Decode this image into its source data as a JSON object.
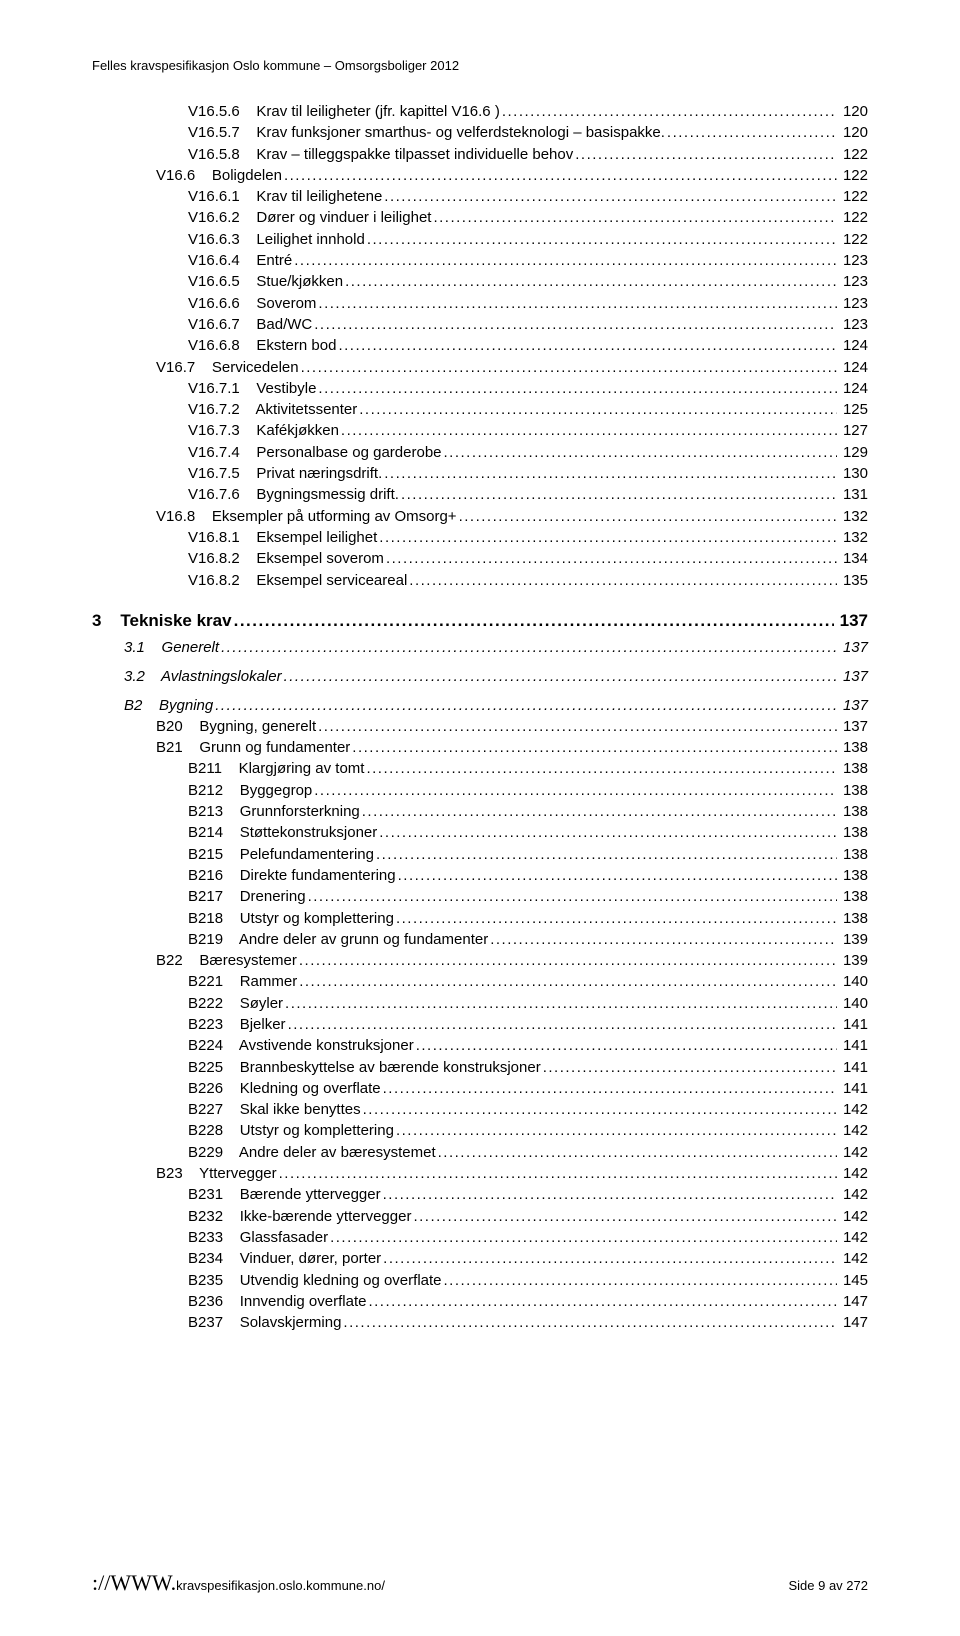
{
  "header": "Felles kravspesifikasjon Oslo kommune – Omsorgsboliger 2012",
  "toc": [
    {
      "indent": "indent-2",
      "label": "V16.5.6    Krav til leiligheter (jfr. kapittel V16.6 )",
      "page": "120"
    },
    {
      "indent": "indent-2",
      "label": "V16.5.7    Krav funksjoner smarthus- og velferdsteknologi – basispakke.",
      "page": "120"
    },
    {
      "indent": "indent-2",
      "label": "V16.5.8    Krav – tilleggspakke tilpasset individuelle behov",
      "page": "122"
    },
    {
      "indent": "indent-1",
      "label": "V16.6    Boligdelen",
      "page": "122"
    },
    {
      "indent": "indent-2",
      "label": "V16.6.1    Krav til leilighetene",
      "page": "122"
    },
    {
      "indent": "indent-2",
      "label": "V16.6.2    Dører og vinduer i leilighet",
      "page": "122"
    },
    {
      "indent": "indent-2",
      "label": "V16.6.3    Leilighet innhold",
      "page": "122"
    },
    {
      "indent": "indent-2",
      "label": "V16.6.4    Entré",
      "page": "123"
    },
    {
      "indent": "indent-2",
      "label": "V16.6.5    Stue/kjøkken",
      "page": "123"
    },
    {
      "indent": "indent-2",
      "label": "V16.6.6    Soverom",
      "page": "123"
    },
    {
      "indent": "indent-2",
      "label": "V16.6.7    Bad/WC",
      "page": "123"
    },
    {
      "indent": "indent-2",
      "label": "V16.6.8    Ekstern bod",
      "page": "124"
    },
    {
      "indent": "indent-1",
      "label": "V16.7    Servicedelen",
      "page": "124"
    },
    {
      "indent": "indent-2",
      "label": "V16.7.1    Vestibyle",
      "page": "124"
    },
    {
      "indent": "indent-2",
      "label": "V16.7.2    Aktivitetssenter",
      "page": "125"
    },
    {
      "indent": "indent-2",
      "label": "V16.7.3    Kafékjøkken",
      "page": "127"
    },
    {
      "indent": "indent-2",
      "label": "V16.7.4    Personalbase og garderobe",
      "page": "129"
    },
    {
      "indent": "indent-2",
      "label": "V16.7.5    Privat næringsdrift.",
      "page": "130"
    },
    {
      "indent": "indent-2",
      "label": "V16.7.6    Bygningsmessig drift.",
      "page": "131"
    },
    {
      "indent": "indent-1",
      "label": "V16.8    Eksempler på utforming av Omsorg+",
      "page": "132"
    },
    {
      "indent": "indent-2",
      "label": "V16.8.1    Eksempel leilighet",
      "page": "132"
    },
    {
      "indent": "indent-2",
      "label": "V16.8.2    Eksempel soverom",
      "page": "134"
    },
    {
      "indent": "indent-2",
      "label": "V16.8.2    Eksempel serviceareal",
      "page": "135"
    }
  ],
  "section3": {
    "num": "3",
    "title": "Tekniske krav",
    "page": "137"
  },
  "sub_italic": [
    {
      "label": "3.1    Generelt",
      "page": "137",
      "cls": "indent-b2"
    },
    {
      "label": "3.2    Avlastningslokaler",
      "page": "137",
      "cls": "indent-b2"
    },
    {
      "label": "B2    Bygning",
      "page": "137",
      "cls": "indent-b2"
    }
  ],
  "btoc": [
    {
      "indent": "indent-b3",
      "label": "B20    Bygning, generelt",
      "page": "137"
    },
    {
      "indent": "indent-b3",
      "label": "B21    Grunn og fundamenter",
      "page": "138"
    },
    {
      "indent": "indent-b4",
      "label": "B211    Klargjøring av tomt",
      "page": "138"
    },
    {
      "indent": "indent-b4",
      "label": "B212    Byggegrop",
      "page": "138"
    },
    {
      "indent": "indent-b4",
      "label": "B213    Grunnforsterkning",
      "page": "138"
    },
    {
      "indent": "indent-b4",
      "label": "B214    Støttekonstruksjoner",
      "page": "138"
    },
    {
      "indent": "indent-b4",
      "label": "B215    Pelefundamentering",
      "page": "138"
    },
    {
      "indent": "indent-b4",
      "label": "B216    Direkte fundamentering",
      "page": "138"
    },
    {
      "indent": "indent-b4",
      "label": "B217    Drenering",
      "page": "138"
    },
    {
      "indent": "indent-b4",
      "label": "B218    Utstyr og komplettering",
      "page": "138"
    },
    {
      "indent": "indent-b4",
      "label": "B219    Andre deler av grunn og fundamenter",
      "page": "139"
    },
    {
      "indent": "indent-b3",
      "label": "B22    Bæresystemer",
      "page": "139"
    },
    {
      "indent": "indent-b4",
      "label": "B221    Rammer",
      "page": "140"
    },
    {
      "indent": "indent-b4",
      "label": "B222    Søyler",
      "page": "140"
    },
    {
      "indent": "indent-b4",
      "label": "B223    Bjelker",
      "page": "141"
    },
    {
      "indent": "indent-b4",
      "label": "B224    Avstivende konstruksjoner",
      "page": "141"
    },
    {
      "indent": "indent-b4",
      "label": "B225    Brannbeskyttelse av bærende konstruksjoner",
      "page": "141"
    },
    {
      "indent": "indent-b4",
      "label": "B226    Kledning og overflate",
      "page": "141"
    },
    {
      "indent": "indent-b4",
      "label": "B227    Skal ikke benyttes",
      "page": "142"
    },
    {
      "indent": "indent-b4",
      "label": "B228    Utstyr og komplettering",
      "page": "142"
    },
    {
      "indent": "indent-b4",
      "label": "B229    Andre deler av bæresystemet",
      "page": "142"
    },
    {
      "indent": "indent-b3",
      "label": "B23    Yttervegger",
      "page": "142"
    },
    {
      "indent": "indent-b4",
      "label": "B231    Bærende yttervegger",
      "page": "142"
    },
    {
      "indent": "indent-b4",
      "label": "B232    Ikke-bærende yttervegger",
      "page": "142"
    },
    {
      "indent": "indent-b4",
      "label": "B233    Glassfasader",
      "page": "142"
    },
    {
      "indent": "indent-b4",
      "label": "B234    Vinduer, dører, porter",
      "page": "142"
    },
    {
      "indent": "indent-b4",
      "label": "B235    Utvendig kledning og overflate",
      "page": "145"
    },
    {
      "indent": "indent-b4",
      "label": "B236    Innvendig overflate",
      "page": "147"
    },
    {
      "indent": "indent-b4",
      "label": "B237    Solavskjerming",
      "page": "147"
    }
  ],
  "footer": {
    "www": "://WWW.",
    "url": "kravspesifikasjon.oslo.kommune.no/",
    "right": "Side 9 av 272"
  }
}
